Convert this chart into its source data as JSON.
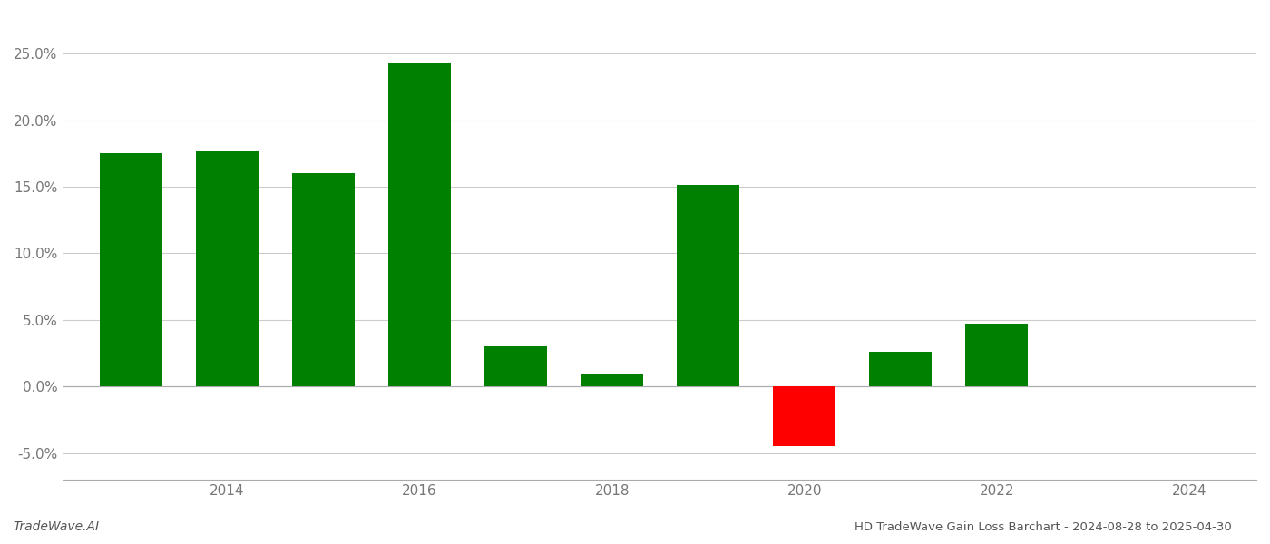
{
  "years": [
    2013,
    2014,
    2015,
    2016,
    2017,
    2018,
    2019,
    2020,
    2021,
    2022
  ],
  "values": [
    0.175,
    0.177,
    0.16,
    0.243,
    0.03,
    0.01,
    0.151,
    -0.045,
    0.026,
    0.047
  ],
  "bar_colors": [
    "#008000",
    "#008000",
    "#008000",
    "#008000",
    "#008000",
    "#008000",
    "#008000",
    "#FF0000",
    "#008000",
    "#008000"
  ],
  "title": "HD TradeWave Gain Loss Barchart - 2024-08-28 to 2025-04-30",
  "watermark": "TradeWave.AI",
  "ylim": [
    -0.07,
    0.28
  ],
  "yticks": [
    -0.05,
    0.0,
    0.05,
    0.1,
    0.15,
    0.2,
    0.25
  ],
  "xtick_labels": [
    "2014",
    "2016",
    "2018",
    "2020",
    "2022",
    "2024"
  ],
  "xtick_positions": [
    2014,
    2016,
    2018,
    2020,
    2022,
    2024
  ],
  "xlim_min": 2012.3,
  "xlim_max": 2024.7,
  "background_color": "#ffffff",
  "grid_color": "#cccccc",
  "bar_width": 0.65
}
